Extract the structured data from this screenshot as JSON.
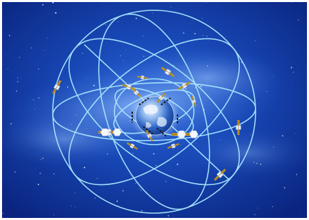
{
  "image": {
    "subject": "earth-with-satellite-constellation-orbits",
    "colors": {
      "space_deep": "#0b2a8f",
      "space_mid": "#1f55c8",
      "nebula": "#7fb0f2",
      "orbit": "#a9e8ff",
      "earth_ocean": "#2e6fd0",
      "earth_land": "#e8f1ff",
      "satellite_panel": "#d9a21a",
      "satellite_body": "#e9eef5"
    }
  }
}
